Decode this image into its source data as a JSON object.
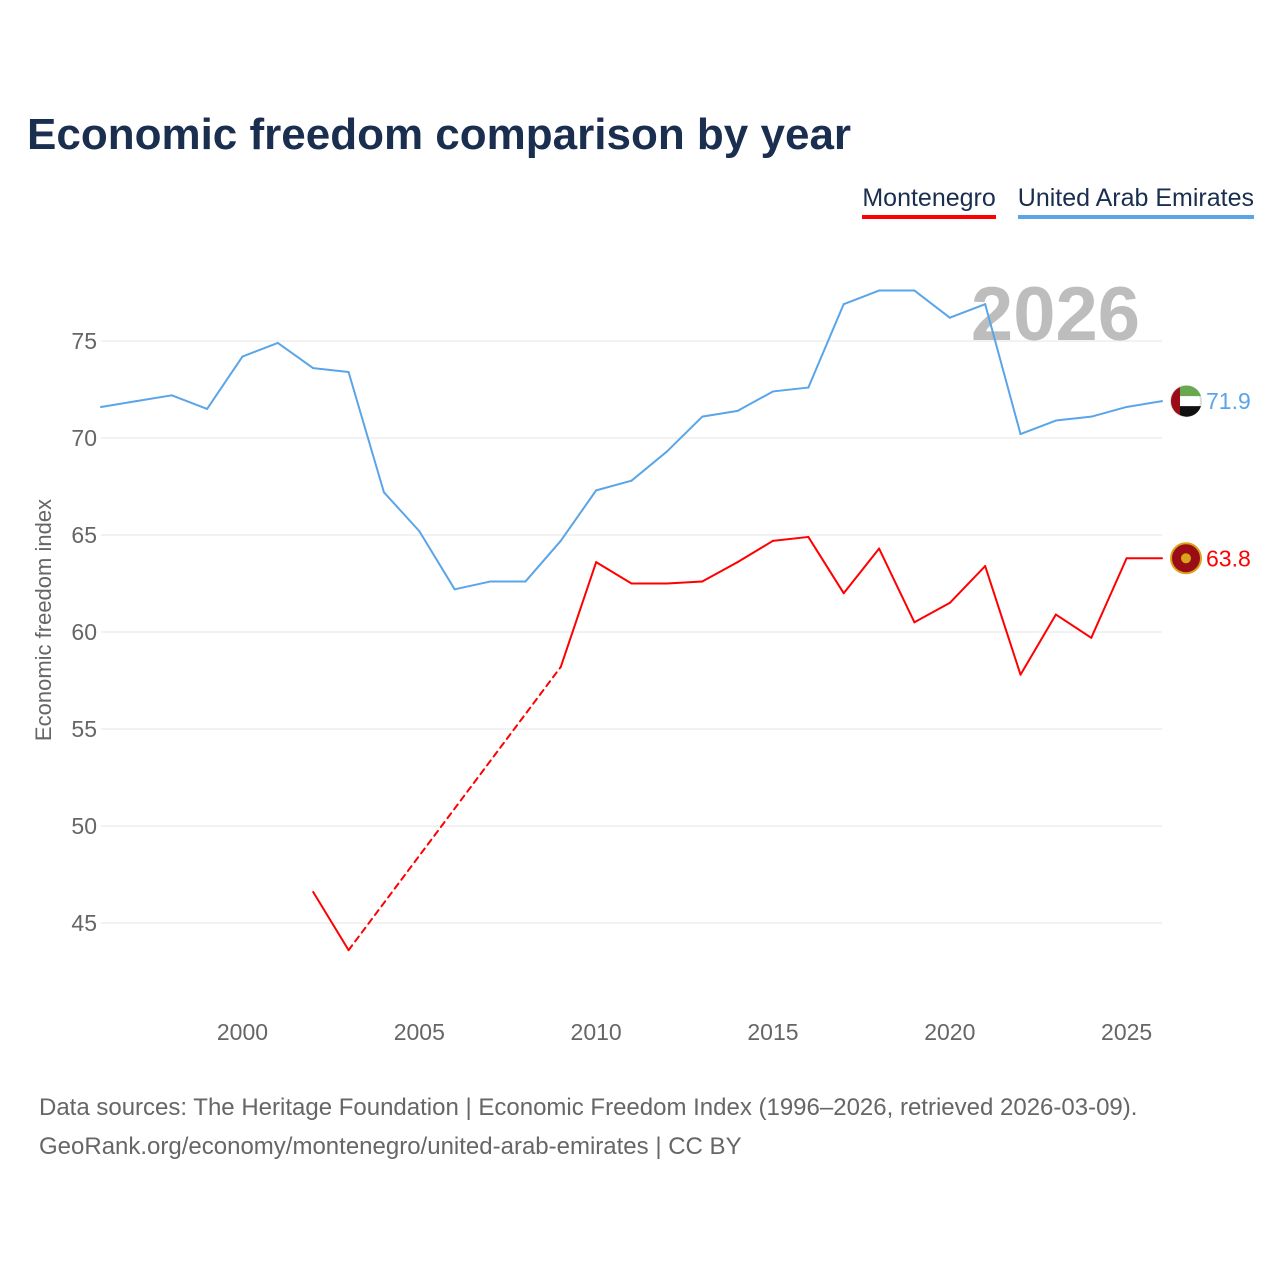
{
  "chart_data": {
    "type": "line",
    "title": "Economic freedom comparison by year",
    "xlabel": "",
    "ylabel": "Economic freedom index",
    "xlim": [
      1996,
      2026
    ],
    "ylim": [
      40,
      79
    ],
    "yticks": [
      45,
      50,
      55,
      60,
      65,
      70,
      75
    ],
    "xticks": [
      2000,
      2005,
      2010,
      2015,
      2020,
      2025
    ],
    "grid": true,
    "legend_placement": "top-right",
    "year_watermark": "2026",
    "x": [
      1996,
      1997,
      1998,
      1999,
      2000,
      2001,
      2002,
      2003,
      2004,
      2005,
      2006,
      2007,
      2008,
      2009,
      2010,
      2011,
      2012,
      2013,
      2014,
      2015,
      2016,
      2017,
      2018,
      2019,
      2020,
      2021,
      2022,
      2023,
      2024,
      2025,
      2026
    ],
    "series": [
      {
        "name": "Montenegro",
        "color": "#ff0000",
        "end_label": "63.8",
        "values": [
          null,
          null,
          null,
          null,
          null,
          null,
          46.6,
          43.6,
          null,
          null,
          null,
          null,
          null,
          58.2,
          63.6,
          62.5,
          62.5,
          62.6,
          63.6,
          64.7,
          64.9,
          62.0,
          64.3,
          60.5,
          61.5,
          63.4,
          57.8,
          60.9,
          59.7,
          63.8,
          63.8
        ]
      },
      {
        "name": "United Arab Emirates",
        "color": "#5aa5e8",
        "end_label": "71.9",
        "values": [
          71.6,
          71.9,
          72.2,
          71.5,
          74.2,
          74.9,
          73.6,
          73.4,
          67.2,
          65.2,
          62.2,
          62.6,
          62.6,
          64.7,
          67.3,
          67.8,
          69.3,
          71.1,
          71.4,
          72.4,
          72.6,
          76.9,
          77.6,
          77.6,
          76.2,
          76.9,
          70.2,
          70.9,
          71.1,
          71.6,
          71.9
        ]
      }
    ]
  },
  "footer": {
    "line1": "Data sources: The Heritage Foundation | Economic Freedom Index (1996–2026, retrieved 2026-03-09).",
    "line2": "GeoRank.org/economy/montenegro/united-arab-emirates | CC BY"
  }
}
